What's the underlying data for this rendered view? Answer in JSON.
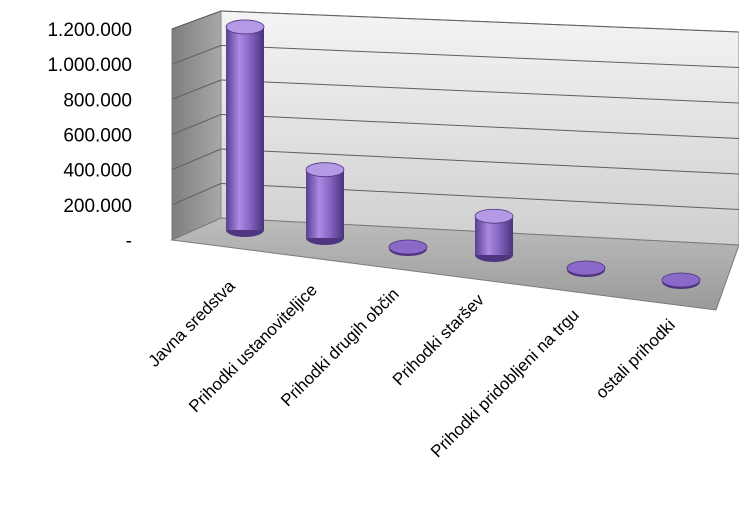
{
  "chart_data": {
    "type": "bar",
    "style": "3d-cylinder",
    "categories": [
      "Javna sredstva",
      "Prihodki ustanoviteljice",
      "Prihodki drugih občin",
      "Prihodki staršev",
      "Prihodki pridobljeni na trgu",
      "ostali prihodki"
    ],
    "values": [
      1100000,
      370000,
      5000,
      210000,
      15000,
      8000
    ],
    "ylim": [
      0,
      1200000
    ],
    "y_ticks": [
      {
        "value": 0,
        "label": "-"
      },
      {
        "value": 200000,
        "label": "200.000"
      },
      {
        "value": 400000,
        "label": "400.000"
      },
      {
        "value": 600000,
        "label": "600.000"
      },
      {
        "value": 800000,
        "label": "800.000"
      },
      {
        "value": 1000000,
        "label": "1.000.000"
      },
      {
        "value": 1200000,
        "label": "1.200.000"
      }
    ],
    "grid": true,
    "colors": {
      "bar": "#8B69C9",
      "bar_dark": "#4E3580",
      "bar_light": "#B49AE6",
      "wall": "#D0D0D0",
      "floor": "#A9A9A9",
      "side_wall": "#8E8E8E"
    }
  }
}
